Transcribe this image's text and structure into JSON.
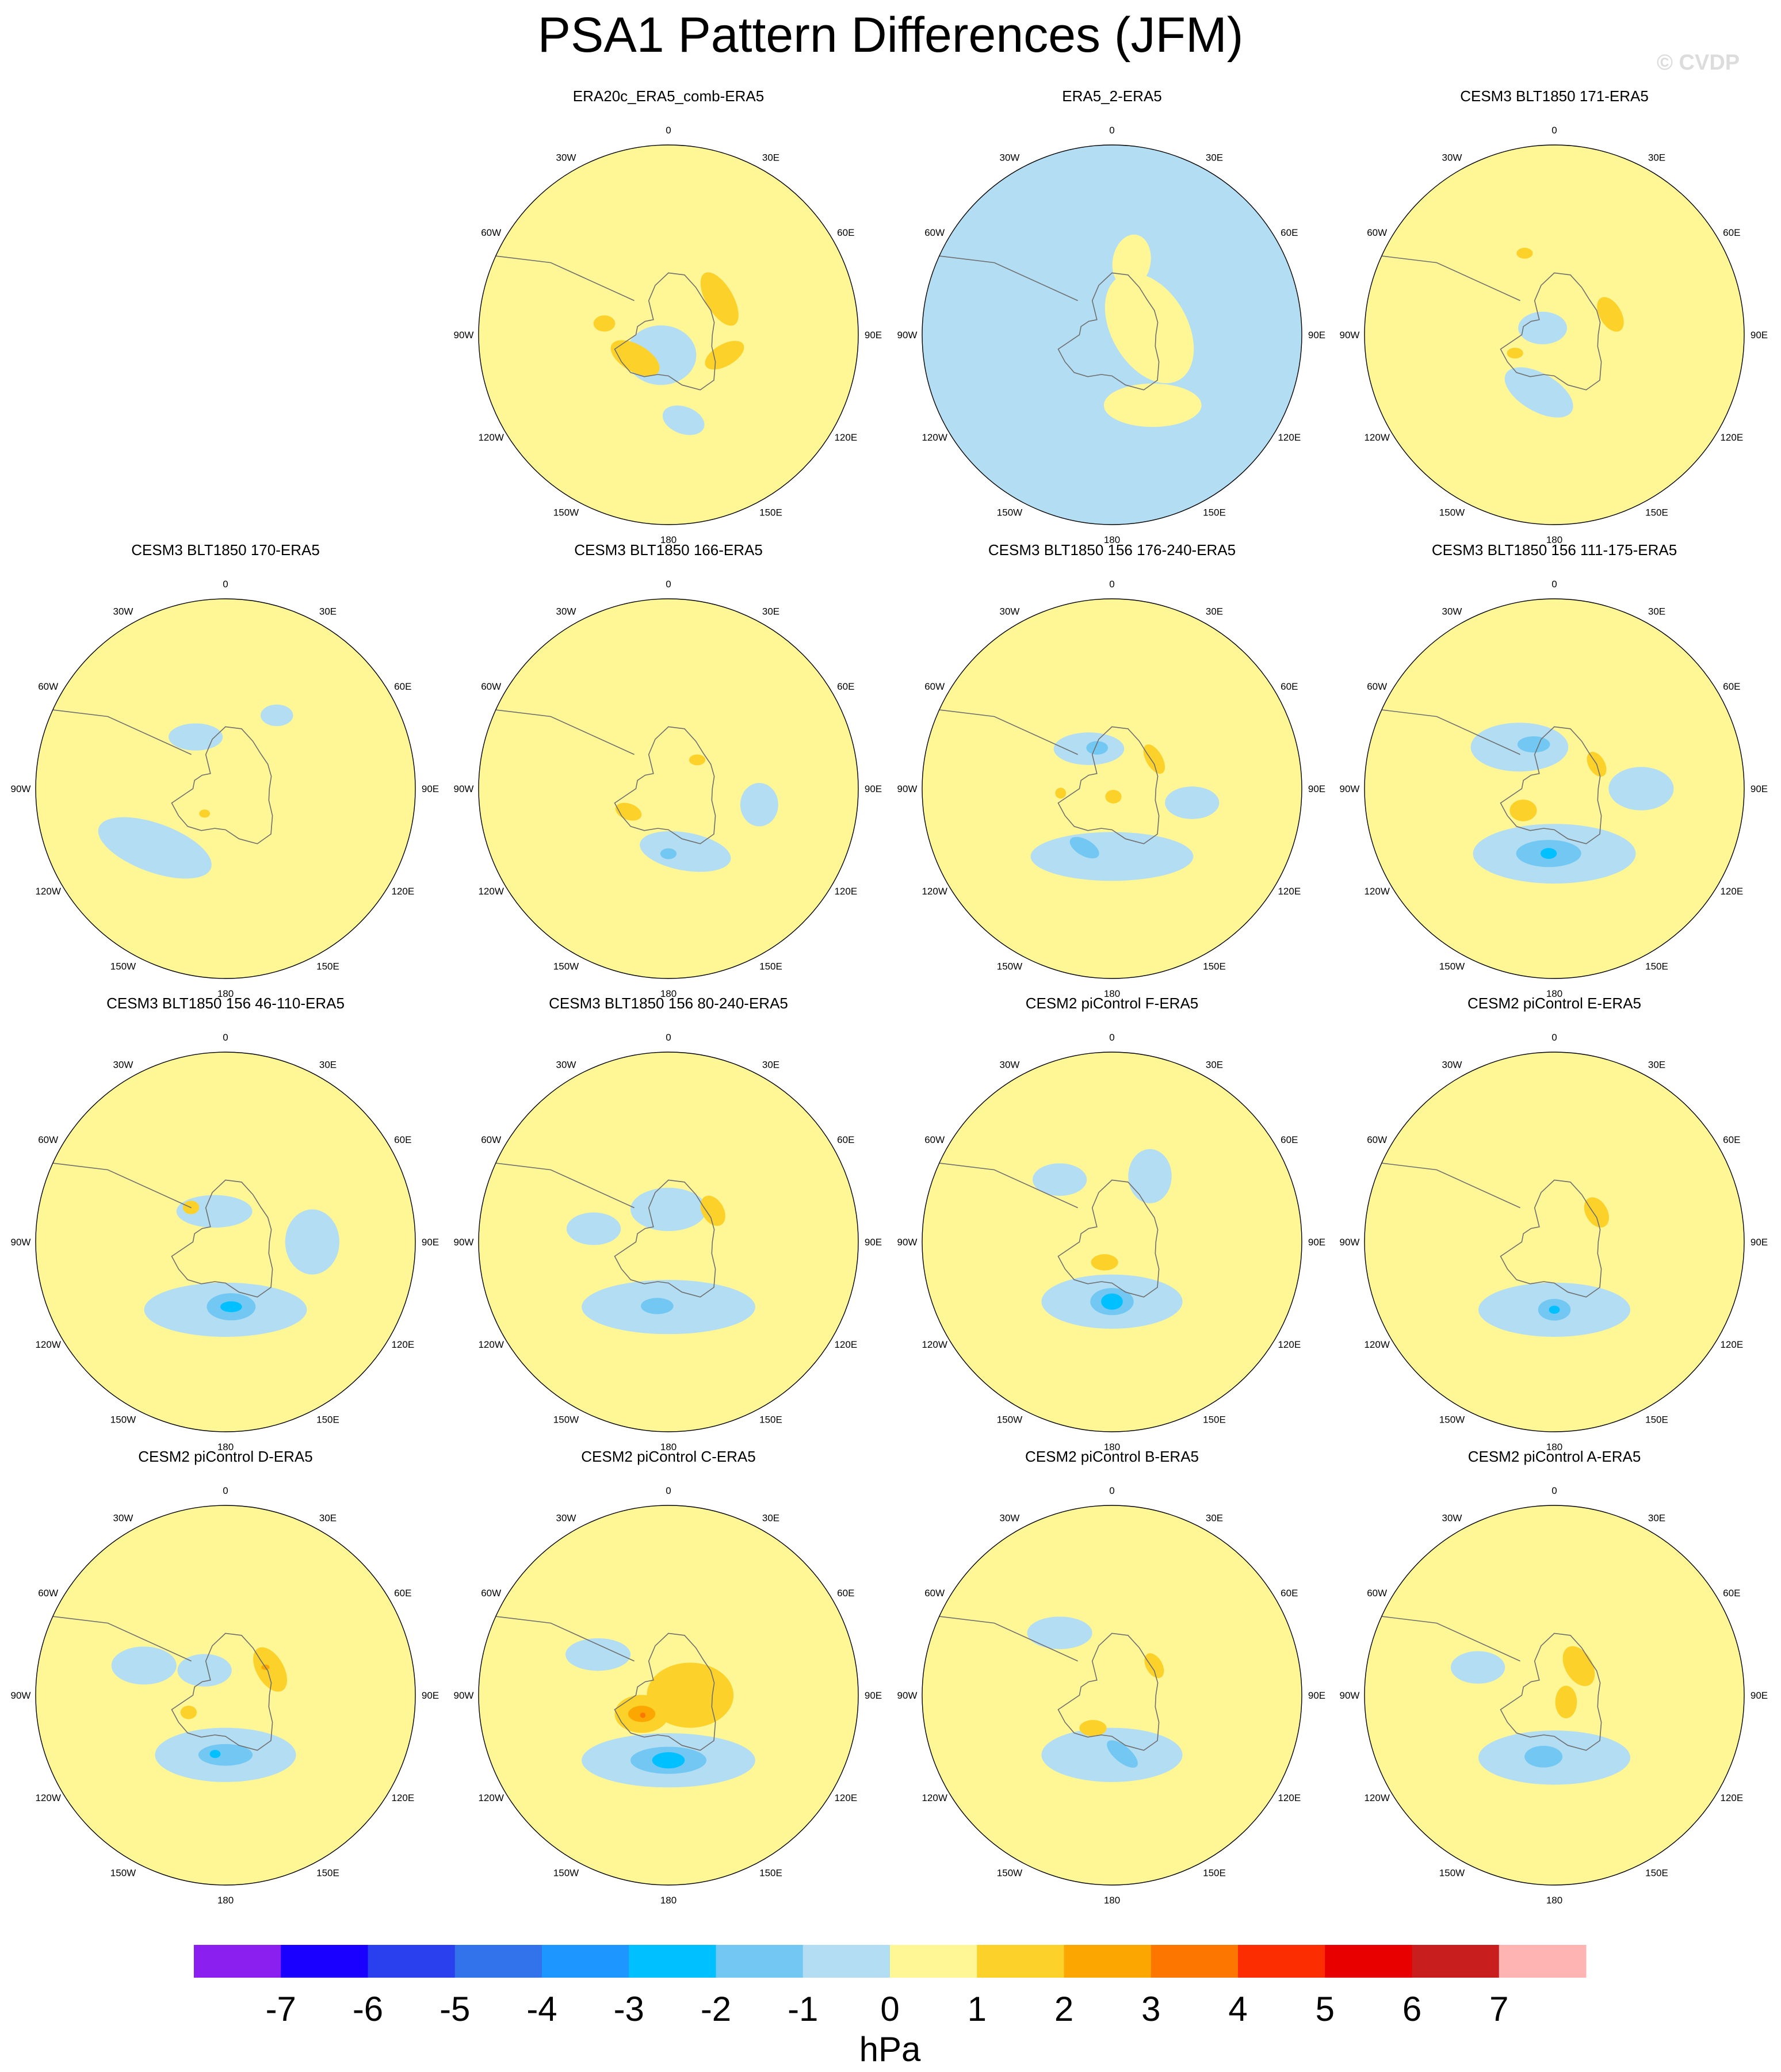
{
  "title": "PSA1 Pattern Differences (JFM)",
  "watermark": "© CVDP",
  "chart_data": {
    "type": "polar-stereographic contour maps",
    "variable": "PSA1 pattern difference",
    "season": "JFM",
    "longitude_labels": [
      "0",
      "30E",
      "60E",
      "90E",
      "120E",
      "150E",
      "180",
      "150W",
      "120W",
      "90W",
      "60W",
      "30W"
    ],
    "colorbar": {
      "units": "hPa",
      "levels": [
        -7,
        -6,
        -5,
        -4,
        -3,
        -2,
        -1,
        0,
        1,
        2,
        3,
        4,
        5,
        6,
        7
      ],
      "colors": [
        "#8a1ff0",
        "#1a00ff",
        "#2a40ee",
        "#3272ea",
        "#1e96ff",
        "#00c0ff",
        "#72c8f2",
        "#b3ddf2",
        "#fff696",
        "#fcd22a",
        "#fca601",
        "#fc7600",
        "#fc2d00",
        "#e80000",
        "#c81e1e",
        "#ffb4b4"
      ]
    },
    "panels": [
      {
        "title": "ERA20c_ERA5_comb-ERA5",
        "row": 0,
        "col": 1,
        "background": 0.5,
        "features": [
          {
            "value": -0.5,
            "lon": 200,
            "colat": 8,
            "rx": 13,
            "ry": 11,
            "rot": 0
          },
          {
            "value": -0.5,
            "lon": 170,
            "colat": 32,
            "rx": 8,
            "ry": 5,
            "rot": 20
          },
          {
            "value": 1.5,
            "lon": 55,
            "colat": 23,
            "rx": 11,
            "ry": 5,
            "rot": 60
          },
          {
            "value": 1.5,
            "lon": 110,
            "colat": 22,
            "rx": 8,
            "ry": 4,
            "rot": -30
          },
          {
            "value": 1.5,
            "lon": 235,
            "colat": 15,
            "rx": 10,
            "ry": 5,
            "rot": 30
          },
          {
            "value": 1.5,
            "lon": 280,
            "colat": 24,
            "rx": 4,
            "ry": 3,
            "rot": 0
          }
        ]
      },
      {
        "title": "ERA5_2-ERA5",
        "row": 0,
        "col": 2,
        "background": -0.5,
        "features": [
          {
            "value": 0.5,
            "lon": 80,
            "colat": 14,
            "rx": 22,
            "ry": 14,
            "rot": 60
          },
          {
            "value": 0.5,
            "lon": 150,
            "colat": 30,
            "rx": 18,
            "ry": 8,
            "rot": 0
          },
          {
            "value": 0.5,
            "lon": 15,
            "colat": 28,
            "rx": 7,
            "ry": 10,
            "rot": 10
          }
        ]
      },
      {
        "title": "CESM3 BLT1850 171-ERA5",
        "row": 0,
        "col": 3,
        "background": 0.5,
        "features": [
          {
            "value": -0.5,
            "lon": 300,
            "colat": 5,
            "rx": 9,
            "ry": 6,
            "rot": 0
          },
          {
            "value": -0.5,
            "lon": 195,
            "colat": 22,
            "rx": 14,
            "ry": 7,
            "rot": 30
          },
          {
            "value": 1.5,
            "lon": 70,
            "colat": 22,
            "rx": 7,
            "ry": 4,
            "rot": 60
          },
          {
            "value": 1.5,
            "lon": 245,
            "colat": 16,
            "rx": 3,
            "ry": 2,
            "rot": 0
          },
          {
            "value": 1.5,
            "lon": 340,
            "colat": 32,
            "rx": 3,
            "ry": 2,
            "rot": 0
          }
        ]
      },
      {
        "title": "CESM3 BLT1850 170-ERA5",
        "row": 1,
        "col": 0,
        "background": 0.5,
        "features": [
          {
            "value": -0.5,
            "lon": 230,
            "colat": 34,
            "rx": 22,
            "ry": 9,
            "rot": 20
          },
          {
            "value": -0.5,
            "lon": 330,
            "colat": 22,
            "rx": 10,
            "ry": 5,
            "rot": 0
          },
          {
            "value": -0.5,
            "lon": 35,
            "colat": 33,
            "rx": 6,
            "ry": 4,
            "rot": 0
          },
          {
            "value": 1.5,
            "lon": 220,
            "colat": 12,
            "rx": 2,
            "ry": 1.5,
            "rot": 0
          }
        ]
      },
      {
        "title": "CESM3 BLT1850 166-ERA5",
        "row": 1,
        "col": 1,
        "background": 0.5,
        "features": [
          {
            "value": -0.5,
            "lon": 165,
            "colat": 24,
            "rx": 17,
            "ry": 7,
            "rot": 10
          },
          {
            "value": -0.5,
            "lon": 100,
            "colat": 34,
            "rx": 7,
            "ry": 8,
            "rot": 0
          },
          {
            "value": -1.5,
            "lon": 180,
            "colat": 24,
            "rx": 3,
            "ry": 2,
            "rot": 0
          },
          {
            "value": 1.5,
            "lon": 240,
            "colat": 17,
            "rx": 5,
            "ry": 3,
            "rot": 20
          },
          {
            "value": 1.5,
            "lon": 45,
            "colat": 15,
            "rx": 3,
            "ry": 2,
            "rot": 0
          }
        ]
      },
      {
        "title": "CESM3 BLT1850 156 176-240-ERA5",
        "row": 1,
        "col": 2,
        "background": 0.5,
        "features": [
          {
            "value": -0.5,
            "lon": 180,
            "colat": 25,
            "rx": 30,
            "ry": 9,
            "rot": 0
          },
          {
            "value": -0.5,
            "lon": 330,
            "colat": 17,
            "rx": 13,
            "ry": 6,
            "rot": 0
          },
          {
            "value": -0.5,
            "lon": 100,
            "colat": 30,
            "rx": 10,
            "ry": 6,
            "rot": 0
          },
          {
            "value": -1.5,
            "lon": 205,
            "colat": 24,
            "rx": 6,
            "ry": 3,
            "rot": 30
          },
          {
            "value": -1.5,
            "lon": 340,
            "colat": 16,
            "rx": 4,
            "ry": 2.5,
            "rot": 0
          },
          {
            "value": 1.5,
            "lon": 55,
            "colat": 19,
            "rx": 6,
            "ry": 3,
            "rot": 60
          },
          {
            "value": 1.5,
            "lon": 170,
            "colat": 3,
            "rx": 3,
            "ry": 2.5,
            "rot": 0
          },
          {
            "value": 1.5,
            "lon": 265,
            "colat": 19,
            "rx": 2,
            "ry": 2,
            "rot": 0
          }
        ]
      },
      {
        "title": "CESM3 BLT1850 156 111-175-ERA5",
        "row": 1,
        "col": 3,
        "background": 0.5,
        "features": [
          {
            "value": -0.5,
            "lon": 180,
            "colat": 24,
            "rx": 30,
            "ry": 11,
            "rot": 0
          },
          {
            "value": -0.5,
            "lon": 320,
            "colat": 20,
            "rx": 18,
            "ry": 9,
            "rot": 0
          },
          {
            "value": -0.5,
            "lon": 90,
            "colat": 32,
            "rx": 12,
            "ry": 8,
            "rot": 0
          },
          {
            "value": -1.5,
            "lon": 185,
            "colat": 24,
            "rx": 12,
            "ry": 5,
            "rot": 0
          },
          {
            "value": -1.5,
            "lon": 335,
            "colat": 18,
            "rx": 6,
            "ry": 3,
            "rot": 0
          },
          {
            "value": -2.5,
            "lon": 185,
            "colat": 24,
            "rx": 3,
            "ry": 2,
            "rot": 0
          },
          {
            "value": 1.5,
            "lon": 60,
            "colat": 18,
            "rx": 5,
            "ry": 3,
            "rot": 60
          },
          {
            "value": 1.5,
            "lon": 235,
            "colat": 14,
            "rx": 5,
            "ry": 4,
            "rot": 0
          }
        ]
      },
      {
        "title": "CESM3 BLT1850 156 46-110-ERA5",
        "row": 2,
        "col": 0,
        "background": 0.5,
        "features": [
          {
            "value": -0.5,
            "lon": 180,
            "colat": 25,
            "rx": 30,
            "ry": 10,
            "rot": 0
          },
          {
            "value": -0.5,
            "lon": 340,
            "colat": 12,
            "rx": 14,
            "ry": 6,
            "rot": 0
          },
          {
            "value": -0.5,
            "lon": 90,
            "colat": 32,
            "rx": 10,
            "ry": 12,
            "rot": 0
          },
          {
            "value": -1.5,
            "lon": 175,
            "colat": 24,
            "rx": 9,
            "ry": 5,
            "rot": 0
          },
          {
            "value": -2.5,
            "lon": 175,
            "colat": 24,
            "rx": 4,
            "ry": 2,
            "rot": 0
          },
          {
            "value": 1.5,
            "lon": 315,
            "colat": 18,
            "rx": 3,
            "ry": 2.5,
            "rot": 0
          }
        ]
      },
      {
        "title": "CESM3 BLT1850 156 80-240-ERA5",
        "row": 2,
        "col": 1,
        "background": 0.5,
        "features": [
          {
            "value": -0.5,
            "lon": 180,
            "colat": 24,
            "rx": 32,
            "ry": 10,
            "rot": 0
          },
          {
            "value": -0.5,
            "lon": 0,
            "colat": 12,
            "rx": 14,
            "ry": 8,
            "rot": 0
          },
          {
            "value": -0.5,
            "lon": 280,
            "colat": 28,
            "rx": 10,
            "ry": 6,
            "rot": 0
          },
          {
            "value": -1.5,
            "lon": 190,
            "colat": 24,
            "rx": 6,
            "ry": 3,
            "rot": 0
          },
          {
            "value": 1.5,
            "lon": 55,
            "colat": 20,
            "rx": 6,
            "ry": 4,
            "rot": 60
          }
        ]
      },
      {
        "title": "CESM2 piControl F-ERA5",
        "row": 2,
        "col": 2,
        "background": 0.5,
        "features": [
          {
            "value": -0.5,
            "lon": 180,
            "colat": 22,
            "rx": 26,
            "ry": 10,
            "rot": 0
          },
          {
            "value": -0.5,
            "lon": 320,
            "colat": 30,
            "rx": 10,
            "ry": 6,
            "rot": 0
          },
          {
            "value": -0.5,
            "lon": 30,
            "colat": 28,
            "rx": 8,
            "ry": 10,
            "rot": 0
          },
          {
            "value": -1.5,
            "lon": 180,
            "colat": 22,
            "rx": 8,
            "ry": 5,
            "rot": 0
          },
          {
            "value": -2.5,
            "lon": 180,
            "colat": 22,
            "rx": 4,
            "ry": 3,
            "rot": 0
          },
          {
            "value": 1.5,
            "lon": 200,
            "colat": 8,
            "rx": 5,
            "ry": 3,
            "rot": 0
          }
        ]
      },
      {
        "title": "CESM2 piControl E-ERA5",
        "row": 2,
        "col": 3,
        "background": 0.5,
        "features": [
          {
            "value": -0.5,
            "lon": 180,
            "colat": 25,
            "rx": 28,
            "ry": 10,
            "rot": 0
          },
          {
            "value": -1.5,
            "lon": 180,
            "colat": 25,
            "rx": 6,
            "ry": 4,
            "rot": 0
          },
          {
            "value": -2.5,
            "lon": 180,
            "colat": 25,
            "rx": 2,
            "ry": 1.5,
            "rot": 0
          },
          {
            "value": 1.5,
            "lon": 55,
            "colat": 19,
            "rx": 6,
            "ry": 4,
            "rot": 60
          }
        ]
      },
      {
        "title": "CESM2 piControl D-ERA5",
        "row": 3,
        "col": 0,
        "background": 0.5,
        "features": [
          {
            "value": -0.5,
            "lon": 180,
            "colat": 22,
            "rx": 26,
            "ry": 10,
            "rot": 0
          },
          {
            "value": -0.5,
            "lon": 320,
            "colat": 12,
            "rx": 10,
            "ry": 6,
            "rot": 0
          },
          {
            "value": -0.5,
            "lon": 290,
            "colat": 32,
            "rx": 12,
            "ry": 7,
            "rot": 0
          },
          {
            "value": -1.5,
            "lon": 180,
            "colat": 22,
            "rx": 10,
            "ry": 4,
            "rot": 0
          },
          {
            "value": -2.5,
            "lon": 190,
            "colat": 22,
            "rx": 2,
            "ry": 1.5,
            "rot": 0
          },
          {
            "value": 1.5,
            "lon": 60,
            "colat": 19,
            "rx": 9,
            "ry": 5,
            "rot": 60
          },
          {
            "value": 2.5,
            "lon": 55,
            "colat": 18,
            "rx": 1.5,
            "ry": 1,
            "rot": 0
          },
          {
            "value": 1.5,
            "lon": 245,
            "colat": 15,
            "rx": 3,
            "ry": 2.5,
            "rot": 0
          }
        ]
      },
      {
        "title": "CESM2 piControl C-ERA5",
        "row": 3,
        "col": 1,
        "background": 0.5,
        "features": [
          {
            "value": -0.5,
            "lon": 180,
            "colat": 24,
            "rx": 32,
            "ry": 10,
            "rot": 0
          },
          {
            "value": -0.5,
            "lon": 300,
            "colat": 30,
            "rx": 12,
            "ry": 6,
            "rot": 0
          },
          {
            "value": -1.5,
            "lon": 180,
            "colat": 24,
            "rx": 14,
            "ry": 5,
            "rot": 0
          },
          {
            "value": -2.5,
            "lon": 180,
            "colat": 24,
            "rx": 6,
            "ry": 3,
            "rot": 0
          },
          {
            "value": 1.5,
            "lon": 90,
            "colat": 8,
            "rx": 16,
            "ry": 12,
            "rot": 0
          },
          {
            "value": 1.5,
            "lon": 235,
            "colat": 12,
            "rx": 10,
            "ry": 7,
            "rot": 0
          },
          {
            "value": 2.5,
            "lon": 235,
            "colat": 12,
            "rx": 5,
            "ry": 3,
            "rot": 0
          },
          {
            "value": 3.5,
            "lon": 232,
            "colat": 12,
            "rx": 1,
            "ry": 1,
            "rot": 0
          }
        ]
      },
      {
        "title": "CESM2 piControl B-ERA5",
        "row": 3,
        "col": 2,
        "background": 0.5,
        "features": [
          {
            "value": -0.5,
            "lon": 180,
            "colat": 22,
            "rx": 26,
            "ry": 10,
            "rot": 0
          },
          {
            "value": -0.5,
            "lon": 320,
            "colat": 30,
            "rx": 12,
            "ry": 6,
            "rot": 0
          },
          {
            "value": -1.5,
            "lon": 170,
            "colat": 22,
            "rx": 7,
            "ry": 3,
            "rot": 40
          },
          {
            "value": 1.5,
            "lon": 55,
            "colat": 19,
            "rx": 5,
            "ry": 3,
            "rot": 60
          },
          {
            "value": 1.5,
            "lon": 210,
            "colat": 14,
            "rx": 5,
            "ry": 3,
            "rot": 0
          }
        ]
      },
      {
        "title": "CESM2 piControl A-ERA5",
        "row": 3,
        "col": 3,
        "background": 0.5,
        "features": [
          {
            "value": -0.5,
            "lon": 180,
            "colat": 23,
            "rx": 28,
            "ry": 10,
            "rot": 0
          },
          {
            "value": -0.5,
            "lon": 290,
            "colat": 30,
            "rx": 10,
            "ry": 6,
            "rot": 0
          },
          {
            "value": -1.5,
            "lon": 190,
            "colat": 23,
            "rx": 7,
            "ry": 4,
            "rot": 0
          },
          {
            "value": 1.5,
            "lon": 40,
            "colat": 14,
            "rx": 8,
            "ry": 5,
            "rot": 60
          },
          {
            "value": 1.5,
            "lon": 120,
            "colat": 5,
            "rx": 4,
            "ry": 6,
            "rot": 0
          }
        ]
      }
    ]
  }
}
